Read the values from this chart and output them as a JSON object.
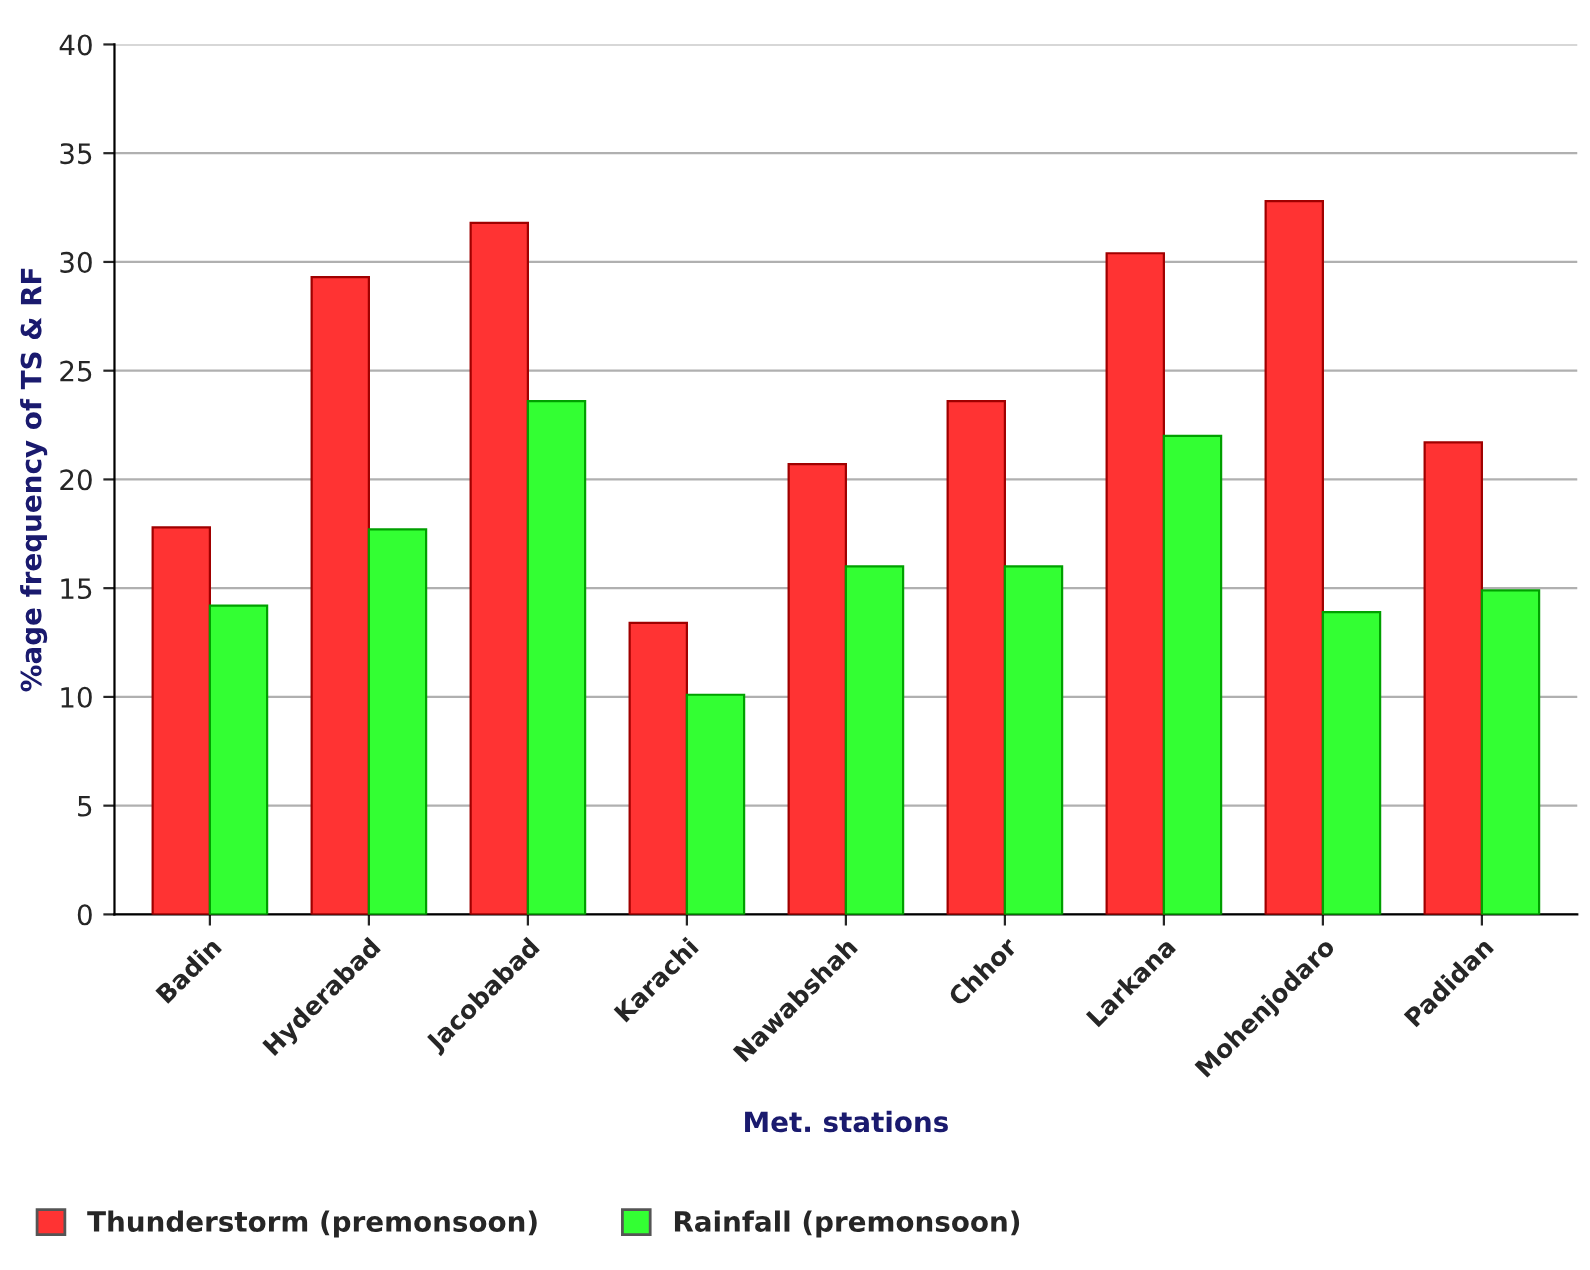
{
  "chart_data": {
    "type": "bar",
    "xlabel": "Met. stations",
    "ylabel": "%age frequency of TS & RF",
    "categories": [
      "Badin",
      "Hyderabad",
      "Jacobabad",
      "Karachi",
      "Nawabshah",
      "Chhor",
      "Larkana",
      "Mohenjodaro",
      "Padidan"
    ],
    "series": [
      {
        "name": "Thunderstorm (premonsoon)",
        "color": "#ff3333",
        "values": [
          17.8,
          29.3,
          31.8,
          13.4,
          20.7,
          23.6,
          30.4,
          32.8,
          21.7
        ]
      },
      {
        "name": "Rainfall (premonsoon)",
        "color": "#33ff33",
        "values": [
          14.2,
          17.7,
          23.6,
          10.1,
          16.0,
          16.0,
          22.0,
          13.9,
          14.9
        ]
      }
    ],
    "ylim": [
      0,
      40
    ],
    "yticks": [
      0,
      5,
      10,
      15,
      20,
      25,
      30,
      35,
      40
    ],
    "grid": "y",
    "legend": "bottom left"
  }
}
